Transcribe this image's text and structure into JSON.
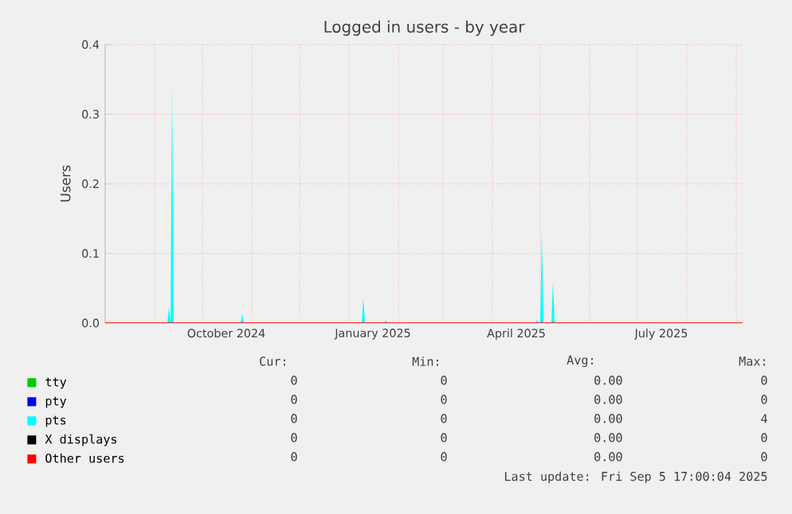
{
  "chart_data": {
    "type": "area",
    "title": "Logged in users - by year",
    "ylabel": "Users",
    "xlim": [
      "2024-08-01",
      "2025-09-05"
    ],
    "ylim": [
      0,
      0.4
    ],
    "xticks": [
      {
        "value": "2024-10-16",
        "label": "October 2024"
      },
      {
        "value": "2025-01-16",
        "label": "January 2025"
      },
      {
        "value": "2025-04-16",
        "label": "April 2025"
      },
      {
        "value": "2025-07-16",
        "label": "July 2025"
      },
      {
        "value": "2024-08-01",
        "label": null
      },
      {
        "value": "2024-09-01",
        "label": null
      },
      {
        "value": "2024-10-01",
        "label": null
      },
      {
        "value": "2024-11-01",
        "label": null
      },
      {
        "value": "2024-12-01",
        "label": null
      },
      {
        "value": "2025-01-01",
        "label": null
      },
      {
        "value": "2025-02-01",
        "label": null
      },
      {
        "value": "2025-03-01",
        "label": null
      },
      {
        "value": "2025-04-01",
        "label": null
      },
      {
        "value": "2025-05-01",
        "label": null
      },
      {
        "value": "2025-06-01",
        "label": null
      },
      {
        "value": "2025-07-01",
        "label": null
      },
      {
        "value": "2025-08-01",
        "label": null
      },
      {
        "value": "2025-09-01",
        "label": null
      }
    ],
    "yticks": [
      {
        "value": 0,
        "label": "0.0"
      },
      {
        "value": 0.1,
        "label": "0.1"
      },
      {
        "value": 0.2,
        "label": "0.2"
      },
      {
        "value": 0.3,
        "label": "0.3"
      },
      {
        "value": 0.4,
        "label": "0.4"
      }
    ],
    "grid": true,
    "legend": "bottom",
    "series": [
      {
        "name": "tty",
        "type": "line",
        "color": "#00cc00"
      },
      {
        "name": "pty",
        "type": "line",
        "color": "#0000ff"
      },
      {
        "name": "pts",
        "color": "#00ffff",
        "x": [
          "2024-08-01",
          "2024-09-09",
          "2024-09-10",
          "2024-09-11",
          "2024-09-12",
          "2024-09-13",
          "2024-10-25",
          "2024-10-26",
          "2024-10-27",
          "2025-01-09",
          "2025-01-10",
          "2025-01-11",
          "2025-01-23",
          "2025-01-24",
          "2025-01-25",
          "2025-04-28",
          "2025-04-29",
          "2025-04-30",
          "2025-05-01",
          "2025-05-02",
          "2025-05-03",
          "2025-05-08",
          "2025-05-09",
          "2025-05-10",
          "2025-09-05"
        ],
        "values": [
          0,
          0,
          0.023,
          0,
          0.34,
          0,
          0,
          0.014,
          0,
          0,
          0.036,
          0,
          0,
          0.004,
          0,
          0,
          0.004,
          0,
          0,
          0.13,
          0,
          0,
          0.06,
          0,
          0
        ]
      },
      {
        "name": "X displays",
        "type": "line",
        "color": "#000000"
      },
      {
        "name": "Other users",
        "type": "line",
        "color": "#ff0000",
        "x": [
          "2024-08-01",
          "2025-09-05"
        ],
        "values": [
          0,
          0
        ]
      }
    ],
    "annotations": [
      "Cur:",
      "Min:",
      "Avg:",
      "Max:",
      "0",
      "0",
      "0.00",
      "0",
      "0",
      "0",
      "0.00",
      "0",
      "0",
      "0",
      "0.00",
      "4",
      "0",
      "0",
      "0.00",
      "0",
      "0",
      "0",
      "0.00",
      "0",
      "Last update: Fri Sep  5 17:00:04 2025"
    ]
  }
}
